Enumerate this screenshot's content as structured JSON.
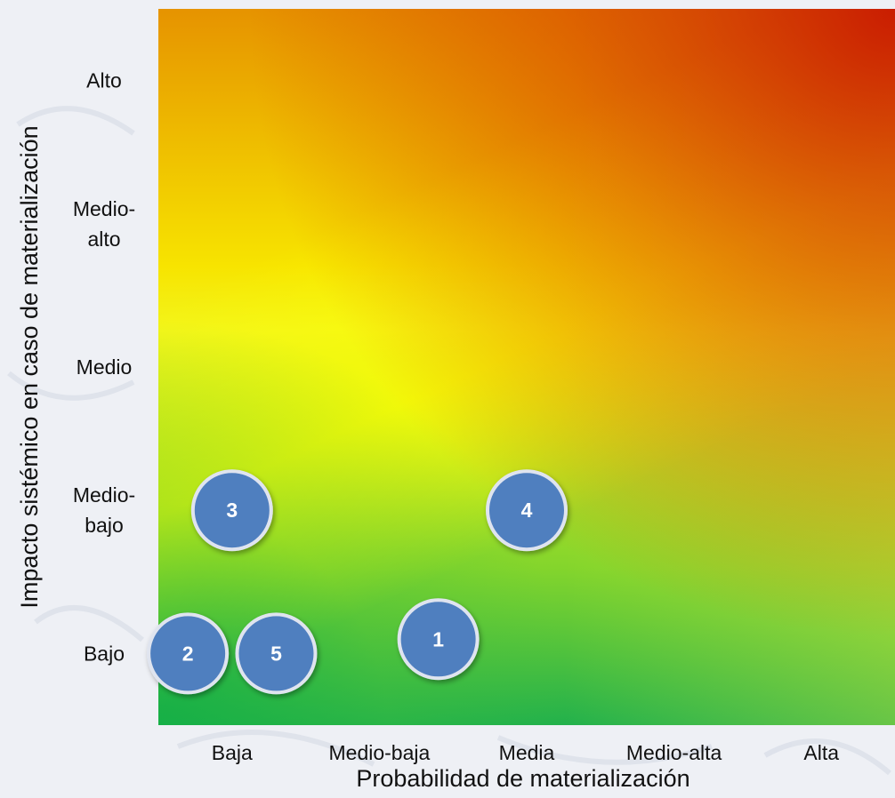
{
  "chart_data": {
    "type": "scatter",
    "xlabel": "Probabilidad de materialización",
    "ylabel": "Impacto sistémico en caso de materialización",
    "x_categories": [
      "Baja",
      "Medio-baja",
      "Media",
      "Medio-alta",
      "Alta"
    ],
    "y_categories": [
      {
        "lines": [
          "Bajo"
        ]
      },
      {
        "lines": [
          "Medio-",
          "bajo"
        ]
      },
      {
        "lines": [
          "Medio"
        ]
      },
      {
        "lines": [
          "Medio-",
          "alto"
        ]
      },
      {
        "lines": [
          "Alto"
        ]
      }
    ],
    "points": [
      {
        "label": "1",
        "x": 2.4,
        "y": 1.1
      },
      {
        "label": "2",
        "x": 0.7,
        "y": 1.0
      },
      {
        "label": "3",
        "x": 1.0,
        "y": 2.0
      },
      {
        "label": "4",
        "x": 3.0,
        "y": 2.0
      },
      {
        "label": "5",
        "x": 1.3,
        "y": 1.0
      }
    ],
    "xlim": [
      0.5,
      5.5
    ],
    "ylim": [
      0.5,
      5.5
    ],
    "background": "risk heat gradient: green (bottom-left) to yellow to red (top-right)",
    "colors": {
      "marker_fill": "#4f7fbf",
      "marker_stroke": "#dfe4ef",
      "marker_text": "#ffffff",
      "risk_low": "#22b14c",
      "risk_mid": "#ffff00",
      "risk_high": "#c81e00"
    }
  }
}
